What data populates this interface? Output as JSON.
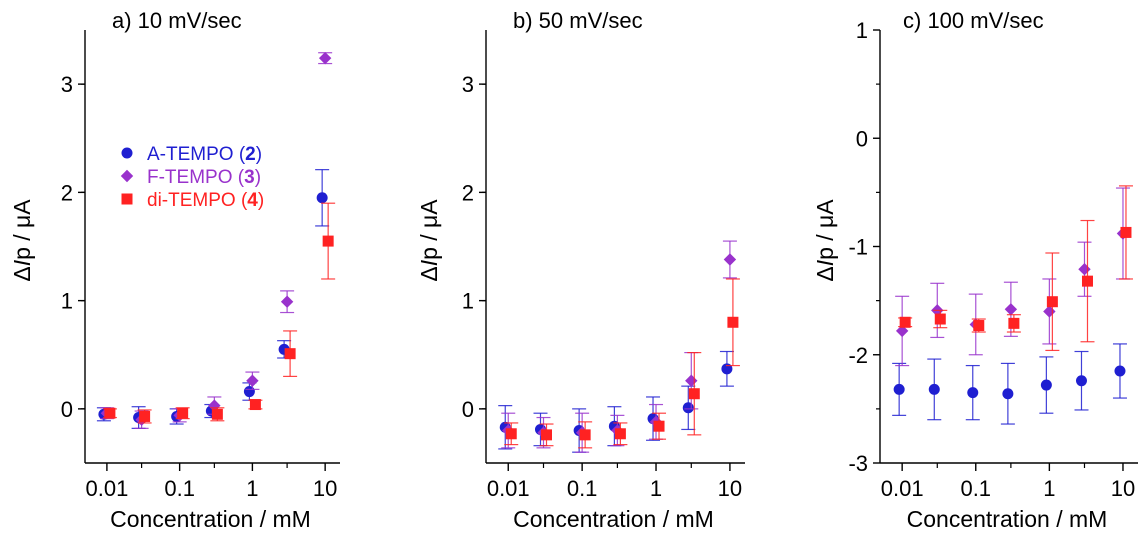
{
  "chart_data": [
    {
      "type": "scatter",
      "title": "a) 10 mV/sec",
      "xlabel": "Concentration / mM",
      "ylabel_parts": [
        "Δ",
        "I",
        "p / μA"
      ],
      "x_scale": "log",
      "xlim": [
        0.005,
        16
      ],
      "ylim": [
        -0.5,
        3.5
      ],
      "x_ticks": [
        0.01,
        0.1,
        1,
        10
      ],
      "x_tick_labels": [
        "0.01",
        "0.1",
        "1",
        "10"
      ],
      "y_ticks": [
        0,
        1,
        2,
        3
      ],
      "y_tick_labels": [
        "0",
        "1",
        "2",
        "3"
      ],
      "grid": false,
      "legend_position": "middle-left",
      "x": [
        0.01,
        0.03,
        0.1,
        0.3,
        1,
        3,
        10
      ],
      "series": [
        {
          "name": "A-TEMPO",
          "number": "2",
          "marker": "circle",
          "color": "#1f1fd1",
          "values": [
            -0.05,
            -0.08,
            -0.07,
            -0.02,
            0.16,
            0.55,
            1.95
          ],
          "errors": [
            0.06,
            0.1,
            0.07,
            0.06,
            0.08,
            0.08,
            0.26
          ]
        },
        {
          "name": "F-TEMPO",
          "number": "3",
          "marker": "diamond",
          "color": "#9932cc",
          "values": [
            -0.04,
            -0.1,
            -0.06,
            0.03,
            0.26,
            0.99,
            3.24
          ],
          "errors": [
            0.05,
            0.08,
            0.06,
            0.08,
            0.08,
            0.1,
            0.05
          ]
        },
        {
          "name": "di-TEMPO",
          "number": "4",
          "marker": "square",
          "color": "#ff2222",
          "values": [
            -0.04,
            -0.07,
            -0.04,
            -0.05,
            0.04,
            0.51,
            1.55
          ],
          "errors": [
            0.04,
            0.06,
            0.05,
            0.06,
            0.04,
            0.21,
            0.35
          ]
        }
      ]
    },
    {
      "type": "scatter",
      "title": "b) 50 mV/sec",
      "xlabel": "Concentration / mM",
      "ylabel_parts": [
        "Δ",
        "I",
        "p / μA"
      ],
      "x_scale": "log",
      "xlim": [
        0.005,
        16
      ],
      "ylim": [
        -0.5,
        3.5
      ],
      "x_ticks": [
        0.01,
        0.1,
        1,
        10
      ],
      "x_tick_labels": [
        "0.01",
        "0.1",
        "1",
        "10"
      ],
      "y_ticks": [
        0,
        1,
        2,
        3
      ],
      "y_tick_labels": [
        "0",
        "1",
        "2",
        "3"
      ],
      "grid": false,
      "x": [
        0.01,
        0.03,
        0.1,
        0.3,
        1,
        3,
        10
      ],
      "series": [
        {
          "name": "A-TEMPO",
          "number": "2",
          "marker": "circle",
          "color": "#1f1fd1",
          "values": [
            -0.17,
            -0.19,
            -0.2,
            -0.16,
            -0.09,
            0.01,
            0.37
          ],
          "errors": [
            0.2,
            0.15,
            0.2,
            0.18,
            0.2,
            0.2,
            0.16
          ]
        },
        {
          "name": "F-TEMPO",
          "number": "3",
          "marker": "diamond",
          "color": "#9932cc",
          "values": [
            -0.2,
            -0.22,
            -0.22,
            -0.2,
            -0.12,
            0.26,
            1.38
          ],
          "errors": [
            0.16,
            0.14,
            0.18,
            0.14,
            0.16,
            0.26,
            0.17
          ]
        },
        {
          "name": "di-TEMPO",
          "number": "4",
          "marker": "square",
          "color": "#ff2222",
          "values": [
            -0.23,
            -0.24,
            -0.24,
            -0.23,
            -0.16,
            0.14,
            0.8
          ],
          "errors": [
            0.1,
            0.1,
            0.12,
            0.1,
            0.12,
            0.38,
            0.4
          ]
        }
      ]
    },
    {
      "type": "scatter",
      "title": "c) 100 mV/sec",
      "xlabel": "Concentration / mM",
      "ylabel_parts": [
        "Δ",
        "I",
        "p / μA"
      ],
      "x_scale": "log",
      "xlim": [
        0.005,
        16
      ],
      "ylim": [
        -3,
        1
      ],
      "x_ticks": [
        0.01,
        0.1,
        1,
        10
      ],
      "x_tick_labels": [
        "0.01",
        "0.1",
        "1",
        "10"
      ],
      "y_ticks": [
        -3,
        -2,
        -1,
        0,
        1
      ],
      "y_tick_labels": [
        "-3",
        "-2",
        "-1",
        "0",
        "1"
      ],
      "grid": false,
      "x": [
        0.01,
        0.03,
        0.1,
        0.3,
        1,
        3,
        10
      ],
      "series": [
        {
          "name": "A-TEMPO",
          "number": "2",
          "marker": "circle",
          "color": "#1f1fd1",
          "values": [
            -2.32,
            -2.32,
            -2.35,
            -2.36,
            -2.28,
            -2.24,
            -2.15
          ],
          "errors": [
            0.24,
            0.28,
            0.25,
            0.28,
            0.26,
            0.27,
            0.25
          ]
        },
        {
          "name": "F-TEMPO",
          "number": "3",
          "marker": "diamond",
          "color": "#9932cc",
          "values": [
            -1.78,
            -1.59,
            -1.72,
            -1.58,
            -1.6,
            -1.21,
            -0.88
          ],
          "errors": [
            0.32,
            0.25,
            0.28,
            0.25,
            0.3,
            0.25,
            0.42
          ]
        },
        {
          "name": "di-TEMPO",
          "number": "4",
          "marker": "square",
          "color": "#ff2222",
          "values": [
            -1.7,
            -1.67,
            -1.73,
            -1.71,
            -1.51,
            -1.32,
            -0.87
          ],
          "errors": [
            0.04,
            0.08,
            0.06,
            0.08,
            0.45,
            0.56,
            0.43
          ]
        }
      ]
    }
  ]
}
